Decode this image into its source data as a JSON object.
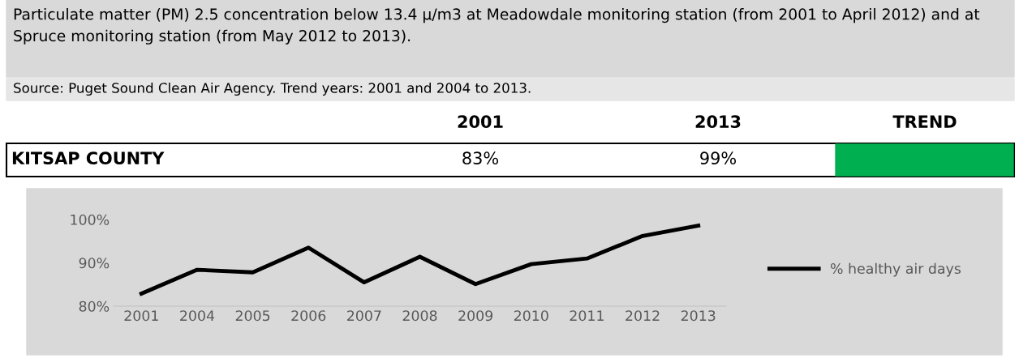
{
  "chart_data": {
    "type": "line",
    "title": "Particulate matter (PM) 2.5 concentration below 13.4 µ/m3 at Meadowdale monitoring station (from 2001 to April 2012) and at Spruce monitoring station (from May 2012 to 2013).",
    "annotations": [
      "Source: Puget Sound Clean Air Agency. Trend years: 2001 and 2004 to 2013.",
      "2001",
      "2013",
      "TREND",
      "KITSAP COUNTY",
      "83%",
      "99%"
    ],
    "categories": [
      "2001",
      "2004",
      "2005",
      "2006",
      "2007",
      "2008",
      "2009",
      "2010",
      "2011",
      "2012",
      "2013"
    ],
    "series": [
      {
        "name": "% healthy air days",
        "color": "#000000",
        "values": [
          82.9,
          88.4,
          87.8,
          93.5,
          85.5,
          91.4,
          85.1,
          89.7,
          91.0,
          96.2,
          98.6
        ]
      }
    ],
    "ylim": [
      80,
      100
    ],
    "yticks": [
      {
        "value": 80,
        "label": "80%"
      },
      {
        "value": 90,
        "label": "90%"
      },
      {
        "value": 100,
        "label": "100%"
      }
    ],
    "grid": false,
    "legend": "right",
    "marker": "none",
    "line_style": "solid"
  }
}
